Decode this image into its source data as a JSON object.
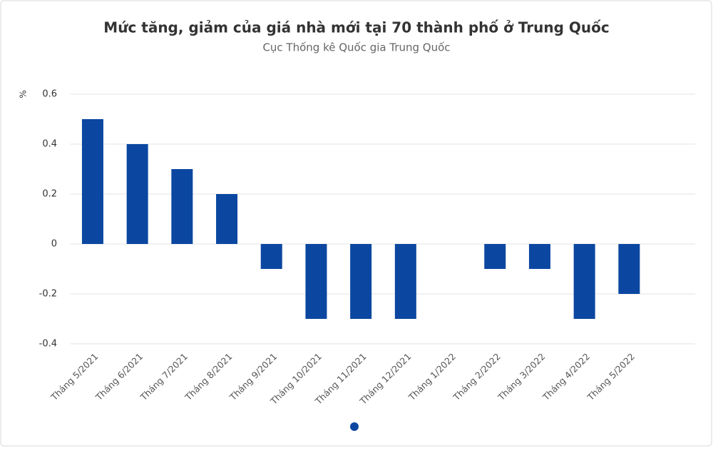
{
  "chart_data": {
    "type": "bar",
    "title": "Mức tăng, giảm của giá nhà mới tại 70 thành phố ở Trung Quốc",
    "subtitle": "Cục Thống kê Quốc gia Trung Quốc",
    "y_label": "%",
    "categories": [
      "Tháng 5/2021",
      "Tháng 6/2021",
      "Tháng 7/2021",
      "Tháng 8/2021",
      "Tháng 9/2021",
      "Tháng 10/2021",
      "Tháng 11/2021",
      "Tháng 12/2021",
      "Tháng 1/2022",
      "Tháng 2/2022",
      "Tháng 3/2022",
      "Tháng 4/2022",
      "Tháng 5/2022"
    ],
    "values": [
      0.5,
      0.4,
      0.3,
      0.2,
      -0.1,
      -0.3,
      -0.3,
      -0.3,
      0,
      -0.1,
      -0.1,
      -0.3,
      -0.2
    ],
    "color": "#0b47a1",
    "ylim": [
      -0.4,
      0.6
    ],
    "yticks": [
      -0.4,
      -0.2,
      0,
      0.2,
      0.4,
      0.6
    ],
    "grid": true
  }
}
